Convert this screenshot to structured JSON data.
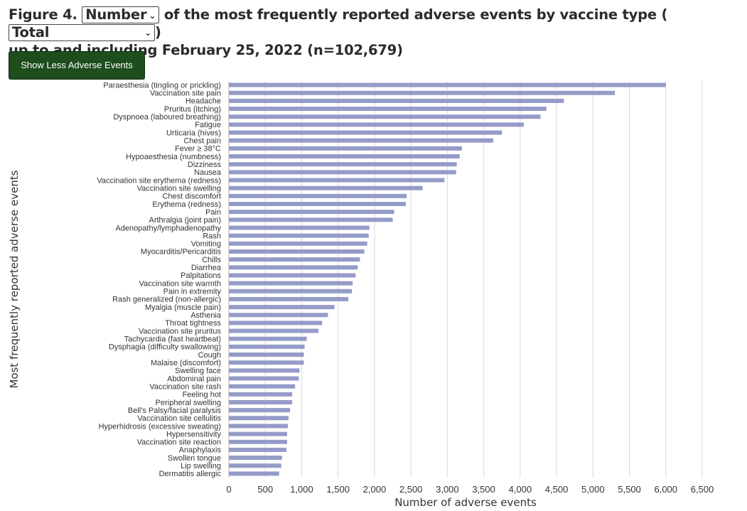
{
  "header": {
    "prefix": "Figure 4.",
    "metric_select": "Number",
    "middle": "of the most frequently reported adverse events by vaccine type (",
    "type_select": "Total",
    "suffix": ")",
    "line2": "up to and including February 25, 2022 (n=102,679)"
  },
  "toggle_button": "Show Less Adverse Events",
  "colors": {
    "bar": "#959bc9",
    "button": "#1e4d1e",
    "grid": "#d9d9d9"
  },
  "chart_data": {
    "type": "bar",
    "orientation": "horizontal",
    "xlabel": "Number of adverse events",
    "ylabel": "Most frequently reported adverse events",
    "xlim": [
      0,
      6500
    ],
    "xticks": [
      0,
      500,
      1000,
      1500,
      2000,
      2500,
      3000,
      3500,
      4000,
      4500,
      5000,
      5500,
      6000,
      6500
    ],
    "xtick_labels": [
      "0",
      "500",
      "1,000",
      "1,500",
      "2,000",
      "2,500",
      "3,000",
      "3,500",
      "4,000",
      "4,500",
      "5,000",
      "5,500",
      "6,000",
      "6,500"
    ],
    "grid": "vertical",
    "categories": [
      "Paraesthesia (tingling or prickling)",
      "Vaccination site pain",
      "Headache",
      "Pruritus (itching)",
      "Dyspnoea (laboured breathing)",
      "Fatigue",
      "Urticaria (hives)",
      "Chest pain",
      "Fever ≥ 38°C",
      "Hypoaesthesia (numbness)",
      "Dizziness",
      "Nausea",
      "Vaccination site erythema (redness)",
      "Vaccination site swelling",
      "Chest discomfort",
      "Erythema (redness)",
      "Pain",
      "Arthralgia (joint pain)",
      "Adenopathy/lymphadenopathy",
      "Rash",
      "Vomiting",
      "Myocarditis/Pericarditis",
      "Chills",
      "Diarrhea",
      "Palpitations",
      "Vaccination site warmth",
      "Pain in extremity",
      "Rash generalized (non-allergic)",
      "Myalgia (muscle pain)",
      "Asthenia",
      "Throat tightness",
      "Vaccination site pruritus",
      "Tachycardia (fast heartbeat)",
      "Dysphagia (difficulty swallowing)",
      "Cough",
      "Malaise (discomfort)",
      "Swelling face",
      "Abdominal pain",
      "Vaccination site rash",
      "Feeling hot",
      "Peripheral swelling",
      "Bell's Palsy/facial paralysis",
      "Vaccination site cellulitis",
      "Hyperhidrosis (excessive sweating)",
      "Hypersensitivity",
      "Vaccination site reaction",
      "Anaphylaxis",
      "Swollen tongue",
      "Lip swelling",
      "Dermatitis allergic"
    ],
    "values": [
      6000,
      5300,
      4600,
      4360,
      4280,
      4050,
      3750,
      3630,
      3200,
      3170,
      3130,
      3120,
      2960,
      2660,
      2440,
      2430,
      2270,
      2250,
      1930,
      1920,
      1900,
      1860,
      1800,
      1770,
      1740,
      1700,
      1690,
      1640,
      1450,
      1360,
      1280,
      1230,
      1070,
      1040,
      1030,
      1030,
      970,
      960,
      910,
      870,
      870,
      840,
      820,
      810,
      800,
      800,
      790,
      730,
      720,
      690
    ]
  }
}
